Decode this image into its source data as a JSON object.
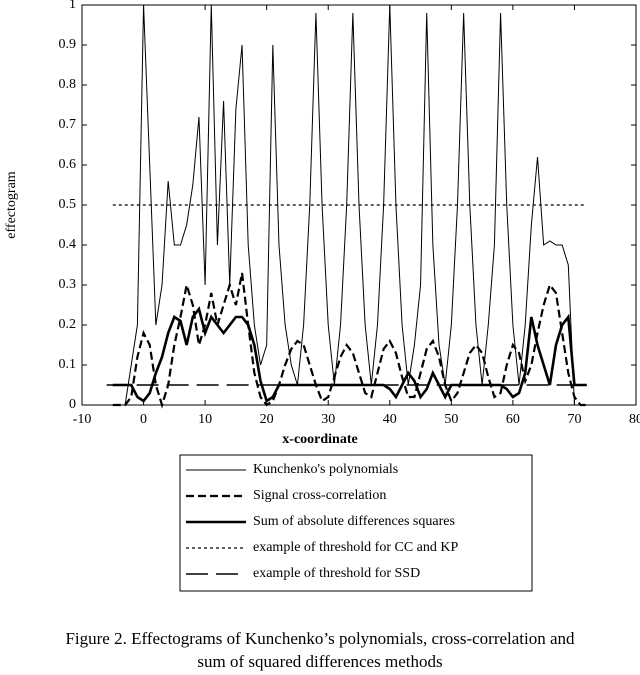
{
  "chart_data": {
    "type": "line",
    "xlabel": "x-coordinate",
    "ylabel": "effectogram",
    "caption": [
      "Figure 2.    Effectograms of Kunchenko’s polynomials, cross-correlation and",
      "sum of squared differences methods"
    ],
    "xlim": [
      -10,
      80
    ],
    "xticks": [
      -10,
      0,
      10,
      20,
      30,
      40,
      50,
      60,
      70,
      80
    ],
    "ylim": [
      0,
      1
    ],
    "yticks": [
      0,
      0.1,
      0.2,
      0.3,
      0.4,
      0.5,
      0.6,
      0.7,
      0.8,
      0.9,
      1
    ],
    "x": [
      -5,
      -4,
      -3,
      -2,
      -1,
      0,
      1,
      2,
      3,
      4,
      5,
      6,
      7,
      8,
      9,
      10,
      11,
      12,
      13,
      14,
      15,
      16,
      17,
      18,
      19,
      20,
      21,
      22,
      23,
      24,
      25,
      26,
      27,
      28,
      29,
      30,
      31,
      32,
      33,
      34,
      35,
      36,
      37,
      38,
      39,
      40,
      41,
      42,
      43,
      44,
      45,
      46,
      47,
      48,
      49,
      50,
      51,
      52,
      53,
      54,
      55,
      56,
      57,
      58,
      59,
      60,
      61,
      62,
      63,
      64,
      65,
      66,
      67,
      68,
      69,
      70,
      71,
      72
    ],
    "series": [
      {
        "name": "Kunchenko's polynomials",
        "color": "#000000",
        "dash": "solid",
        "width": 1,
        "values": [
          0,
          0,
          0,
          0.1,
          0.2,
          1,
          0.6,
          0.2,
          0.3,
          0.56,
          0.4,
          0.4,
          0.45,
          0.55,
          0.72,
          0.3,
          1,
          0.4,
          0.76,
          0.3,
          0.74,
          0.9,
          0.4,
          0.2,
          0.1,
          0.15,
          0.9,
          0.4,
          0.2,
          0.1,
          0.05,
          0.2,
          0.5,
          0.98,
          0.5,
          0.2,
          0.05,
          0.2,
          0.5,
          0.98,
          0.5,
          0.2,
          0.05,
          0.2,
          0.5,
          1,
          0.5,
          0.2,
          0.05,
          0.15,
          0.3,
          0.98,
          0.4,
          0.15,
          0.05,
          0.2,
          0.5,
          0.98,
          0.5,
          0.2,
          0.05,
          0.2,
          0.4,
          0.98,
          0.5,
          0.2,
          0.05,
          0.2,
          0.45,
          0.62,
          0.4,
          0.41,
          0.4,
          0.4,
          0.35,
          0,
          0,
          0
        ]
      },
      {
        "name": "Signal cross-correlation",
        "color": "#000000",
        "dash": "dashed",
        "width": 2.2,
        "values": [
          0,
          0,
          0,
          0.02,
          0.12,
          0.18,
          0.15,
          0.05,
          0,
          0.05,
          0.15,
          0.22,
          0.3,
          0.25,
          0.15,
          0.2,
          0.28,
          0.2,
          0.25,
          0.3,
          0.25,
          0.33,
          0.2,
          0.08,
          0.02,
          0,
          0.01,
          0.05,
          0.1,
          0.14,
          0.16,
          0.15,
          0.1,
          0.05,
          0.01,
          0.02,
          0.07,
          0.12,
          0.15,
          0.13,
          0.08,
          0.03,
          0.02,
          0.08,
          0.14,
          0.16,
          0.13,
          0.07,
          0.02,
          0.02,
          0.08,
          0.14,
          0.16,
          0.12,
          0.05,
          0.01,
          0.03,
          0.08,
          0.13,
          0.15,
          0.13,
          0.07,
          0.02,
          0.03,
          0.1,
          0.15,
          0.13,
          0.06,
          0.1,
          0.18,
          0.25,
          0.3,
          0.28,
          0.18,
          0.08,
          0.02,
          0,
          0
        ]
      },
      {
        "name": "Sum of absolute differences squares",
        "color": "#000000",
        "dash": "solid",
        "width": 2.6,
        "values": [
          0.05,
          0.05,
          0.05,
          0.05,
          0.02,
          0.01,
          0.03,
          0.08,
          0.12,
          0.18,
          0.22,
          0.21,
          0.15,
          0.22,
          0.24,
          0.18,
          0.22,
          0.2,
          0.18,
          0.2,
          0.22,
          0.22,
          0.2,
          0.15,
          0.06,
          0.01,
          0.02,
          0.05,
          0.05,
          0.05,
          0.05,
          0.05,
          0.05,
          0.05,
          0.05,
          0.05,
          0.05,
          0.05,
          0.05,
          0.05,
          0.05,
          0.05,
          0.05,
          0.05,
          0.05,
          0.04,
          0.02,
          0.05,
          0.08,
          0.06,
          0.02,
          0.04,
          0.08,
          0.05,
          0.02,
          0.05,
          0.05,
          0.05,
          0.05,
          0.05,
          0.05,
          0.05,
          0.05,
          0.05,
          0.04,
          0.02,
          0.03,
          0.08,
          0.22,
          0.15,
          0.1,
          0.05,
          0.15,
          0.2,
          0.22,
          0.05,
          0.05,
          0.05
        ]
      },
      {
        "name": "example of threshold for CC and KP",
        "color": "#000000",
        "dash": "dotted",
        "width": 1.3,
        "x": [
          -5,
          72
        ],
        "values": [
          0.5,
          0.5
        ]
      },
      {
        "name": "example of threshold for SSD",
        "color": "#000000",
        "dash": "longdash",
        "width": 1.5,
        "x": [
          -6,
          72
        ],
        "values": [
          0.05,
          0.05
        ]
      }
    ]
  }
}
